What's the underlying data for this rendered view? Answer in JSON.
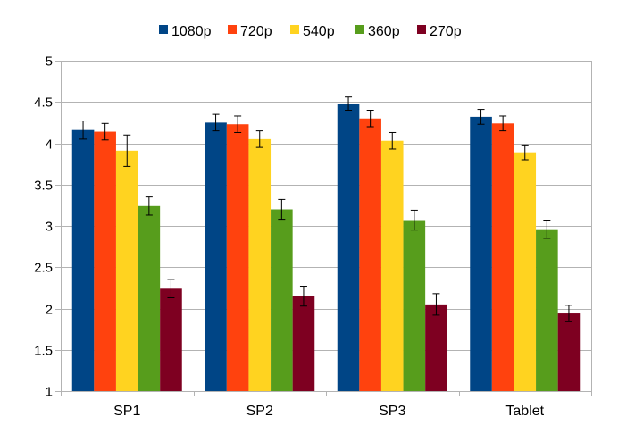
{
  "chart_data": {
    "type": "bar",
    "title": "",
    "xlabel": "",
    "ylabel": "",
    "categories": [
      "SP1",
      "SP2",
      "SP3",
      "Tablet"
    ],
    "ylim": [
      1,
      5
    ],
    "yticks": [
      1,
      1.5,
      2,
      2.5,
      3,
      3.5,
      4,
      4.5,
      5
    ],
    "ytick_labels": [
      "1",
      "1.5",
      "2",
      "2.5",
      "3",
      "3.5",
      "4",
      "4.5",
      "5"
    ],
    "grid": true,
    "legend_position": "top",
    "error_bars": true,
    "series": [
      {
        "name": "1080p",
        "color": "#004586",
        "values": [
          4.16,
          4.25,
          4.48,
          4.32
        ],
        "errors": [
          0.11,
          0.1,
          0.08,
          0.09
        ]
      },
      {
        "name": "720p",
        "color": "#ff420e",
        "values": [
          4.14,
          4.23,
          4.3,
          4.24
        ],
        "errors": [
          0.1,
          0.1,
          0.1,
          0.09
        ]
      },
      {
        "name": "540p",
        "color": "#ffd320",
        "values": [
          3.91,
          4.05,
          4.03,
          3.89
        ],
        "errors": [
          0.19,
          0.1,
          0.1,
          0.09
        ]
      },
      {
        "name": "360p",
        "color": "#579d1c",
        "values": [
          3.24,
          3.2,
          3.07,
          2.96
        ],
        "errors": [
          0.11,
          0.12,
          0.12,
          0.11
        ]
      },
      {
        "name": "270p",
        "color": "#7e0021",
        "values": [
          2.24,
          2.15,
          2.05,
          1.94
        ],
        "errors": [
          0.11,
          0.12,
          0.13,
          0.1
        ]
      }
    ]
  }
}
